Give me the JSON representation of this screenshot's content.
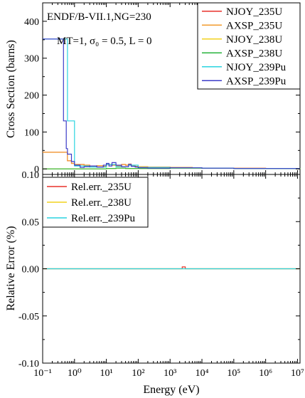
{
  "chart_data": [
    {
      "type": "line",
      "panel": "top",
      "ylabel": "Cross Section (barns)",
      "xscale": "log",
      "xlim": [
        0.1,
        12000000
      ],
      "ylim": [
        -15,
        450
      ],
      "yticks": [
        0,
        100,
        200,
        300,
        400
      ],
      "annotations": [
        "ENDF/B-VII.1,NG=230",
        "MT=1, σ₀ = 0.5, L = 0"
      ],
      "legend": {
        "position": "top-right"
      },
      "series": [
        {
          "name": "NJOY_235U",
          "color": "#e8302a",
          "x": [
            0.1,
            0.5,
            0.6,
            0.8,
            1,
            2,
            3,
            5,
            8,
            10,
            15,
            20,
            30,
            40,
            50,
            60,
            80,
            100,
            200,
            500,
            1000,
            5000,
            10000,
            100000,
            1000000,
            12000000
          ],
          "y": [
            45,
            45,
            22,
            15,
            12,
            10,
            8,
            9,
            7,
            12,
            10,
            8,
            12,
            10,
            13,
            8,
            7,
            6,
            5,
            5,
            4,
            3,
            2,
            1.5,
            1,
            1
          ]
        },
        {
          "name": "AXSP_235U",
          "color": "#f29b2e",
          "x": [
            0.1,
            0.5,
            0.6,
            0.8,
            1,
            2,
            3,
            5,
            8,
            10,
            15,
            20,
            30,
            40,
            50,
            60,
            80,
            100,
            200,
            500,
            1000,
            5000,
            10000,
            100000,
            1000000,
            12000000
          ],
          "y": [
            45,
            45,
            22,
            15,
            12,
            10,
            8,
            9,
            7,
            12,
            10,
            8,
            12,
            10,
            13,
            8,
            7,
            6,
            5,
            5,
            4,
            3,
            2,
            1.5,
            1,
            1
          ]
        },
        {
          "name": "NJOY_238U",
          "color": "#f2d21f",
          "x": [
            0.1,
            1,
            5,
            10,
            20,
            40,
            100,
            1000,
            10000,
            100000,
            1000000,
            12000000
          ],
          "y": [
            0,
            0,
            0,
            1,
            2,
            1,
            1,
            2,
            2,
            1,
            1,
            0
          ]
        },
        {
          "name": "AXSP_238U",
          "color": "#27b43c",
          "x": [
            0.1,
            1,
            5,
            10,
            20,
            40,
            100,
            1000,
            10000,
            100000,
            1000000,
            12000000
          ],
          "y": [
            0,
            0,
            0,
            1,
            2,
            1,
            1,
            2,
            2,
            1,
            1,
            0
          ]
        },
        {
          "name": "NJOY_239Pu",
          "color": "#2ad4e0",
          "x": [
            0.1,
            0.3,
            0.5,
            0.6,
            1,
            3,
            10,
            20,
            50,
            100,
            1000,
            10000,
            100000,
            12000000
          ],
          "y": [
            352,
            352,
            352,
            130,
            8,
            5,
            12,
            6,
            10,
            4,
            3,
            2,
            1,
            1
          ]
        },
        {
          "name": "AXSP_239Pu",
          "color": "#3c3cc8",
          "x": [
            0.1,
            0.3,
            0.4,
            0.45,
            0.5,
            0.55,
            0.6,
            0.8,
            1,
            1.5,
            2,
            3,
            5,
            8,
            10,
            12,
            15,
            20,
            30,
            50,
            60,
            80,
            100,
            200,
            1000,
            10000,
            100000,
            12000000
          ],
          "y": [
            352,
            352,
            352,
            130,
            130,
            55,
            40,
            20,
            10,
            4,
            6,
            8,
            5,
            10,
            15,
            8,
            17,
            10,
            6,
            12,
            7,
            5,
            3,
            2,
            3,
            2,
            1,
            1
          ]
        }
      ]
    },
    {
      "type": "line",
      "panel": "bottom",
      "xlabel": "Energy (eV)",
      "ylabel": "Relative Error (%)",
      "xscale": "log",
      "xlim": [
        0.1,
        12000000
      ],
      "ylim": [
        -0.1,
        0.1
      ],
      "yticks": [
        -0.1,
        -0.05,
        0.0,
        0.05,
        0.1
      ],
      "ytick_labels": [
        "-0.10",
        "-0.05",
        "0.00",
        "0.05",
        "0.10"
      ],
      "xtick_labels": [
        "10⁻¹",
        "10⁰",
        "10¹",
        "10²",
        "10³",
        "10⁴",
        "10⁵",
        "10⁶",
        "10⁷"
      ],
      "legend": {
        "position": "top-left"
      },
      "series": [
        {
          "name": "Rel.err._235U",
          "color": "#e8302a",
          "x": [
            0.1,
            2000,
            2400,
            2500,
            3000,
            12000000
          ],
          "y": [
            0,
            0,
            0.002,
            0.002,
            0,
            0
          ]
        },
        {
          "name": "Rel.err._238U",
          "color": "#f2d21f",
          "x": [
            0.1,
            12000000
          ],
          "y": [
            0,
            0
          ]
        },
        {
          "name": "Rel.err._239Pu",
          "color": "#2ad4e0",
          "x": [
            0.1,
            12000000
          ],
          "y": [
            0,
            0
          ]
        }
      ]
    }
  ]
}
